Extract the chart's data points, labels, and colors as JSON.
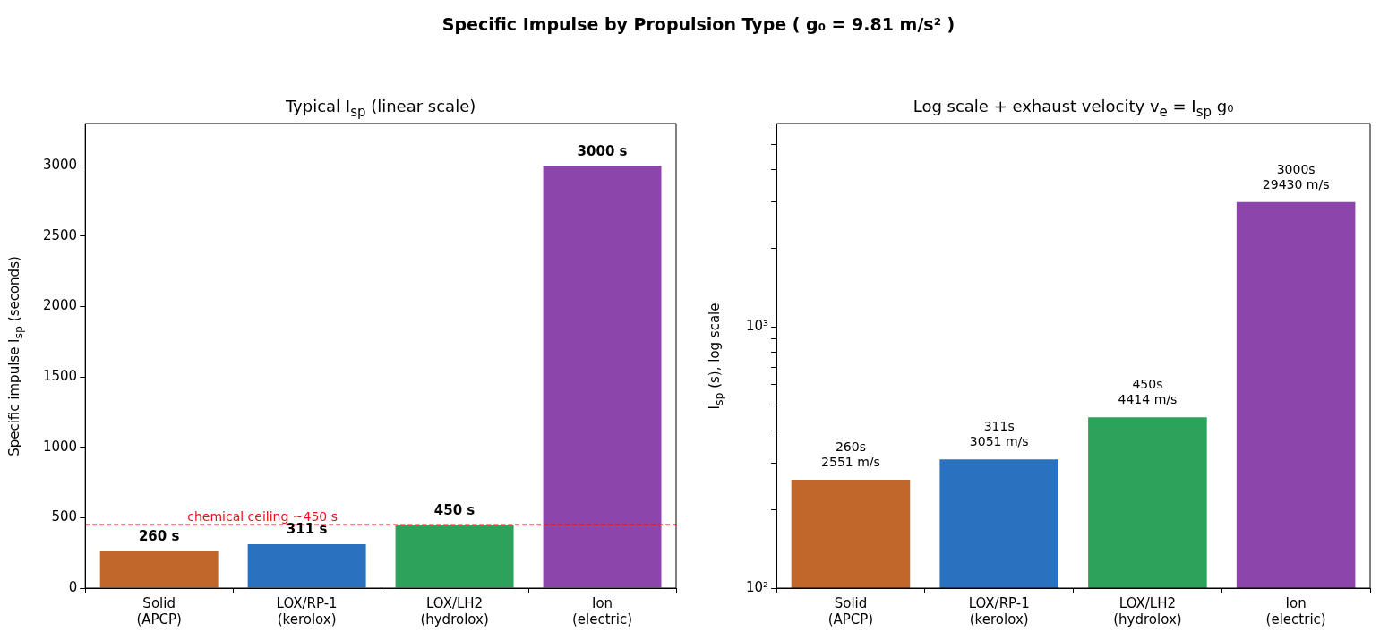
{
  "chart_data": [
    {
      "type": "bar",
      "title": "Typical I$_{sp}$ (linear scale)",
      "ylabel": "Specific impulse I$_{sp}$ (seconds)",
      "annotations": [
        "Specific Impulse by Propulsion Type  ( g₀ = 9.81 m/s² )"
      ],
      "categories": [
        "Solid\n(APCP)",
        "LOX/RP-1\n(kerolox)",
        "LOX/LH2\n(hydrolox)",
        "Ion\n(electric)"
      ],
      "values": [
        260,
        311,
        450,
        3000
      ],
      "colors": [
        "#c0672b",
        "#2a72c0",
        "#2ca25a",
        "#8b45ab"
      ],
      "value_labels": [
        "260 s",
        "311 s",
        "450 s",
        "3000 s"
      ],
      "ylim": [
        0,
        3300
      ],
      "yticks": [
        0,
        500,
        1000,
        1500,
        2000,
        2500,
        3000
      ],
      "ref_lines": [
        {
          "axis": "y",
          "value": 450,
          "label": "chemical ceiling ~450 s",
          "color": "#e8141c",
          "line_style": "dashed"
        }
      ]
    },
    {
      "type": "bar",
      "title": "Log scale + exhaust velocity v$_{e}$ = I$_{sp}$ g₀",
      "ylabel": "I$_{sp}$ (s), log scale",
      "log": "y",
      "categories": [
        "Solid\n(APCP)",
        "LOX/RP-1\n(kerolox)",
        "LOX/LH2\n(hydrolox)",
        "Ion\n(electric)"
      ],
      "values": [
        260,
        311,
        450,
        3000
      ],
      "colors": [
        "#c0672b",
        "#2a72c0",
        "#2ca25a",
        "#8b45ab"
      ],
      "value_labels": [
        "260s\n2551 m/s",
        "311s\n3051 m/s",
        "450s\n4414 m/s",
        "3000s\n29430 m/s"
      ],
      "ylim": [
        100,
        6000
      ],
      "yticks": [
        {
          "value": 100,
          "label": "10²"
        },
        {
          "value": 200,
          "label": null
        },
        {
          "value": 300,
          "label": null
        },
        {
          "value": 400,
          "label": null
        },
        {
          "value": 500,
          "label": null
        },
        {
          "value": 600,
          "label": null
        },
        {
          "value": 700,
          "label": null
        },
        {
          "value": 800,
          "label": null
        },
        {
          "value": 900,
          "label": null
        },
        {
          "value": 1000,
          "label": "10³"
        },
        {
          "value": 2000,
          "label": null
        },
        {
          "value": 3000,
          "label": null
        },
        {
          "value": 4000,
          "label": null
        },
        {
          "value": 5000,
          "label": null
        },
        {
          "value": 6000,
          "label": null
        }
      ]
    }
  ]
}
